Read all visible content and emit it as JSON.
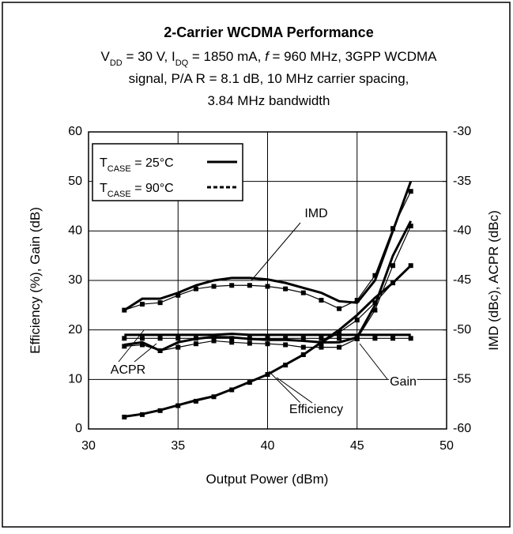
{
  "chart_data": {
    "type": "line",
    "title": "2-Carrier WCDMA Performance",
    "subtitle": [
      [
        {
          "text": "V"
        },
        {
          "text": "DD",
          "sub": true
        },
        {
          "text": " = 30 V,  I"
        },
        {
          "text": "DQ",
          "sub": true
        },
        {
          "text": " = 1850 mA, "
        },
        {
          "text": "f",
          "italic": true
        },
        {
          "text": " = 960 MHz, 3GPP WCDMA"
        }
      ],
      [
        {
          "text": "signal, P/A R = 8.1 dB, 10 MHz carrier spacing,"
        }
      ],
      [
        {
          "text": "3.84 MHz bandwidth"
        }
      ]
    ],
    "xlabel": "Output Power (dBm)",
    "ylabel": "Efficiency (%), Gain (dB)",
    "y2label": "IMD (dBc), ACPR (dBc)",
    "xlim": [
      30,
      50
    ],
    "xticks": [
      30,
      35,
      40,
      45,
      50
    ],
    "ylim": [
      0,
      60
    ],
    "yticks": [
      0,
      10,
      20,
      30,
      40,
      50,
      60
    ],
    "y2lim": [
      -60,
      -30
    ],
    "y2ticks": [
      -60,
      -55,
      -50,
      -45,
      -40,
      -35,
      -30
    ],
    "grid": true,
    "legend_position": "upper left",
    "x": [
      32,
      33,
      34,
      35,
      36,
      37,
      38,
      39,
      40,
      41,
      42,
      43,
      44,
      45,
      46,
      47,
      48
    ],
    "series": [
      {
        "name": [
          {
            "text": "T"
          },
          {
            "text": "CASE",
            "sub": true
          },
          {
            "text": " = 25°C"
          }
        ],
        "color": "#000000",
        "dashed": false,
        "efficiency": [
          2.5,
          3,
          3.8,
          4.8,
          5.8,
          6.6,
          8,
          9.5,
          11,
          13,
          15,
          17.5,
          20,
          23,
          26.5,
          29.5,
          33
        ],
        "gain": [
          19,
          19,
          19,
          19,
          19,
          19,
          19.2,
          19,
          19,
          19,
          19,
          19,
          19,
          19,
          19,
          19,
          19
        ],
        "imd": [
          -48,
          -46.85,
          -46.85,
          -46.25,
          -45.5,
          -45,
          -44.75,
          -44.75,
          -44.9,
          -45.25,
          -45.75,
          -46.25,
          -47.1,
          -47.25,
          -45,
          -40,
          -35
        ],
        "acpr": [
          -51.5,
          -51.25,
          -52.1,
          -51.25,
          -50.9,
          -50.7,
          -50.75,
          -50.9,
          -51,
          -51,
          -51.1,
          -51.25,
          -51.25,
          -50.75,
          -47.5,
          -42.5,
          -39
        ]
      },
      {
        "name": [
          {
            "text": "T"
          },
          {
            "text": "CASE",
            "sub": true
          },
          {
            "text": " = 90°C"
          }
        ],
        "color": "#000000",
        "dashed": true,
        "efficiency": [
          2.4,
          2.9,
          3.7,
          4.7,
          5.6,
          6.5,
          7.9,
          9.4,
          11,
          12.9,
          15,
          17.3,
          19.5,
          22,
          25.5,
          29.5,
          33
        ],
        "gain": [
          18.3,
          18.3,
          18.3,
          18.3,
          18.3,
          18.3,
          18.3,
          18.3,
          18.3,
          18.3,
          18.3,
          18.3,
          18.3,
          18.3,
          18.3,
          18.3,
          18.3
        ],
        "imd": [
          -48,
          -47.4,
          -47.25,
          -46.5,
          -45.85,
          -45.6,
          -45.5,
          -45.5,
          -45.6,
          -45.85,
          -46.25,
          -47,
          -47.85,
          -47,
          -44.5,
          -39.75,
          -36
        ],
        "acpr": [
          -51.65,
          -51.5,
          -52.1,
          -51.75,
          -51.4,
          -51.1,
          -51.25,
          -51.35,
          -51.4,
          -51.5,
          -51.75,
          -51.75,
          -51.75,
          -50.9,
          -48,
          -43.5,
          -39.5
        ]
      }
    ],
    "annotations": [
      "IMD",
      "ACPR",
      "Gain",
      "Efficiency"
    ]
  }
}
